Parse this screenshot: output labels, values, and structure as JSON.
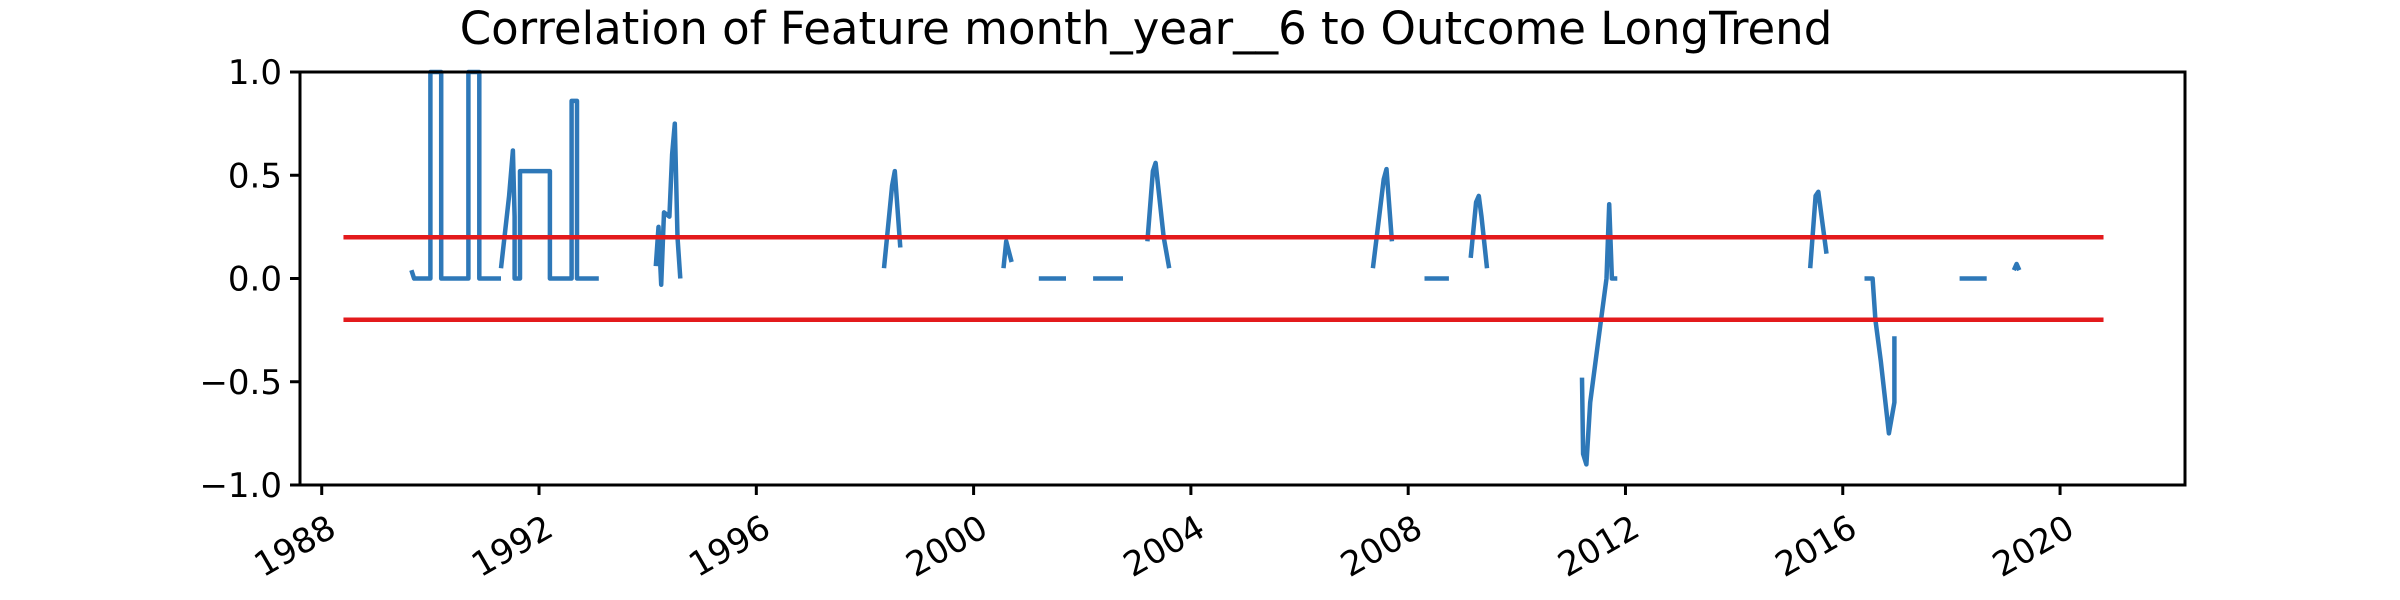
{
  "chart_data": {
    "type": "line",
    "title": "Correlation of Feature month_year__6 to Outcome LongTrend",
    "xlabel": "",
    "ylabel": "",
    "xlim": [
      1987.6,
      2022.3
    ],
    "ylim": [
      -1.0,
      1.0
    ],
    "x_ticks": [
      1988,
      1992,
      1996,
      2000,
      2004,
      2008,
      2012,
      2016,
      2020
    ],
    "x_tick_labels": [
      "1988",
      "1992",
      "1996",
      "2000",
      "2004",
      "2008",
      "2012",
      "2016",
      "2020"
    ],
    "y_ticks": [
      1.0,
      0.5,
      0.0,
      -0.5,
      -1.0
    ],
    "y_tick_labels": [
      "1.0",
      "0.5",
      "0.0",
      "−0.5",
      "−1.0"
    ],
    "grid": false,
    "threshold_lines": [
      {
        "y": 0.2,
        "x_start": 1988.4,
        "x_end": 2020.8,
        "color": "#e31a1c"
      },
      {
        "y": -0.2,
        "x_start": 1988.4,
        "x_end": 2020.8,
        "color": "#e31a1c"
      }
    ],
    "series": [
      {
        "color": "#2e78b8",
        "segments": [
          [
            [
              1989.65,
              0.04
            ],
            [
              1989.7,
              0.0
            ],
            [
              1990.0,
              0.0
            ],
            [
              1990.0,
              1.0
            ],
            [
              1990.2,
              1.0
            ],
            [
              1990.2,
              0.0
            ],
            [
              1990.7,
              0.0
            ],
            [
              1990.7,
              1.0
            ],
            [
              1990.9,
              1.0
            ],
            [
              1990.9,
              0.0
            ],
            [
              1991.3,
              0.0
            ]
          ],
          [
            [
              1991.3,
              0.05
            ],
            [
              1991.45,
              0.4
            ],
            [
              1991.52,
              0.62
            ],
            [
              1991.55,
              0.3
            ],
            [
              1991.55,
              0.0
            ],
            [
              1991.65,
              0.0
            ],
            [
              1991.65,
              0.52
            ],
            [
              1992.2,
              0.52
            ],
            [
              1992.2,
              0.0
            ],
            [
              1992.6,
              0.0
            ],
            [
              1992.6,
              0.86
            ],
            [
              1992.7,
              0.86
            ],
            [
              1992.7,
              0.0
            ],
            [
              1993.1,
              0.0
            ]
          ],
          [
            [
              1994.15,
              0.06
            ],
            [
              1994.2,
              0.25
            ],
            [
              1994.25,
              -0.03
            ],
            [
              1994.3,
              0.32
            ],
            [
              1994.4,
              0.3
            ],
            [
              1994.45,
              0.6
            ],
            [
              1994.5,
              0.75
            ],
            [
              1994.55,
              0.2
            ],
            [
              1994.6,
              0.0
            ]
          ],
          [
            [
              1998.35,
              0.05
            ],
            [
              1998.5,
              0.45
            ],
            [
              1998.55,
              0.52
            ],
            [
              1998.65,
              0.15
            ]
          ],
          [
            [
              2000.55,
              0.05
            ],
            [
              2000.6,
              0.18
            ],
            [
              2000.7,
              0.08
            ]
          ],
          [
            [
              2001.2,
              0.0
            ],
            [
              2001.7,
              0.0
            ]
          ],
          [
            [
              2002.2,
              0.0
            ],
            [
              2002.75,
              0.0
            ]
          ],
          [
            [
              2003.2,
              0.18
            ],
            [
              2003.3,
              0.52
            ],
            [
              2003.35,
              0.56
            ],
            [
              2003.5,
              0.2
            ],
            [
              2003.6,
              0.05
            ]
          ],
          [
            [
              2007.35,
              0.05
            ],
            [
              2007.55,
              0.48
            ],
            [
              2007.6,
              0.53
            ],
            [
              2007.7,
              0.18
            ]
          ],
          [
            [
              2008.3,
              0.0
            ],
            [
              2008.75,
              0.0
            ]
          ],
          [
            [
              2009.15,
              0.1
            ],
            [
              2009.25,
              0.37
            ],
            [
              2009.3,
              0.4
            ],
            [
              2009.35,
              0.3
            ],
            [
              2009.45,
              0.05
            ]
          ],
          [
            [
              2011.2,
              -0.48
            ],
            [
              2011.22,
              -0.85
            ],
            [
              2011.28,
              -0.9
            ],
            [
              2011.35,
              -0.6
            ],
            [
              2011.5,
              -0.3
            ],
            [
              2011.65,
              0.0
            ],
            [
              2011.7,
              0.36
            ],
            [
              2011.75,
              0.0
            ],
            [
              2011.85,
              0.0
            ]
          ],
          [
            [
              2015.4,
              0.05
            ],
            [
              2015.5,
              0.4
            ],
            [
              2015.55,
              0.42
            ],
            [
              2015.7,
              0.12
            ]
          ],
          [
            [
              2016.4,
              0.0
            ],
            [
              2016.55,
              0.0
            ],
            [
              2016.6,
              -0.2
            ],
            [
              2016.7,
              -0.4
            ],
            [
              2016.85,
              -0.75
            ],
            [
              2016.95,
              -0.6
            ],
            [
              2016.95,
              -0.28
            ]
          ],
          [
            [
              2018.15,
              0.0
            ],
            [
              2018.65,
              0.0
            ]
          ],
          [
            [
              2019.15,
              0.04
            ],
            [
              2019.2,
              0.07
            ],
            [
              2019.25,
              0.04
            ]
          ]
        ]
      }
    ]
  }
}
